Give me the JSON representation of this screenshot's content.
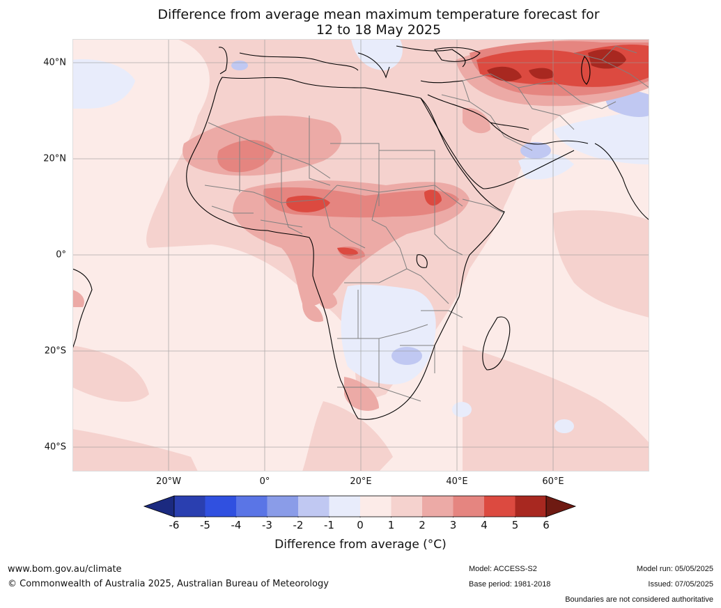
{
  "title_line1": "Difference from average mean maximum temperature forecast for",
  "title_line2": "12 to 18 May 2025",
  "lat_labels": [
    "40°N",
    "20°N",
    "0°",
    "20°S",
    "40°S"
  ],
  "lon_labels": [
    "20°W",
    "0°",
    "20°E",
    "40°E",
    "60°E"
  ],
  "colorbar": {
    "ticks": [
      "-6",
      "-5",
      "-4",
      "-3",
      "-2",
      "-1",
      "0",
      "1",
      "2",
      "3",
      "4",
      "5",
      "6"
    ],
    "label": "Difference from average (°C)",
    "colors": [
      "#1b2a80",
      "#2a3fb0",
      "#3050e0",
      "#5a75e6",
      "#8a9ce8",
      "#c0c8f2",
      "#e8ecfb",
      "#fcebe8",
      "#f5d2ce",
      "#ecaaa6",
      "#e58580",
      "#dc4a40",
      "#a82820",
      "#6e1a12"
    ]
  },
  "footer": {
    "website": "www.bom.gov.au/climate",
    "copyright": "© Commonwealth of Australia 2025, Australian Bureau of Meteorology",
    "model": "Model: ACCESS-S2",
    "base_period": "Base period: 1981-2018",
    "model_run": "Model run: 05/05/2025",
    "issued": "Issued: 07/05/2025",
    "disclaimer": "Boundaries are not considered authoritative"
  }
}
